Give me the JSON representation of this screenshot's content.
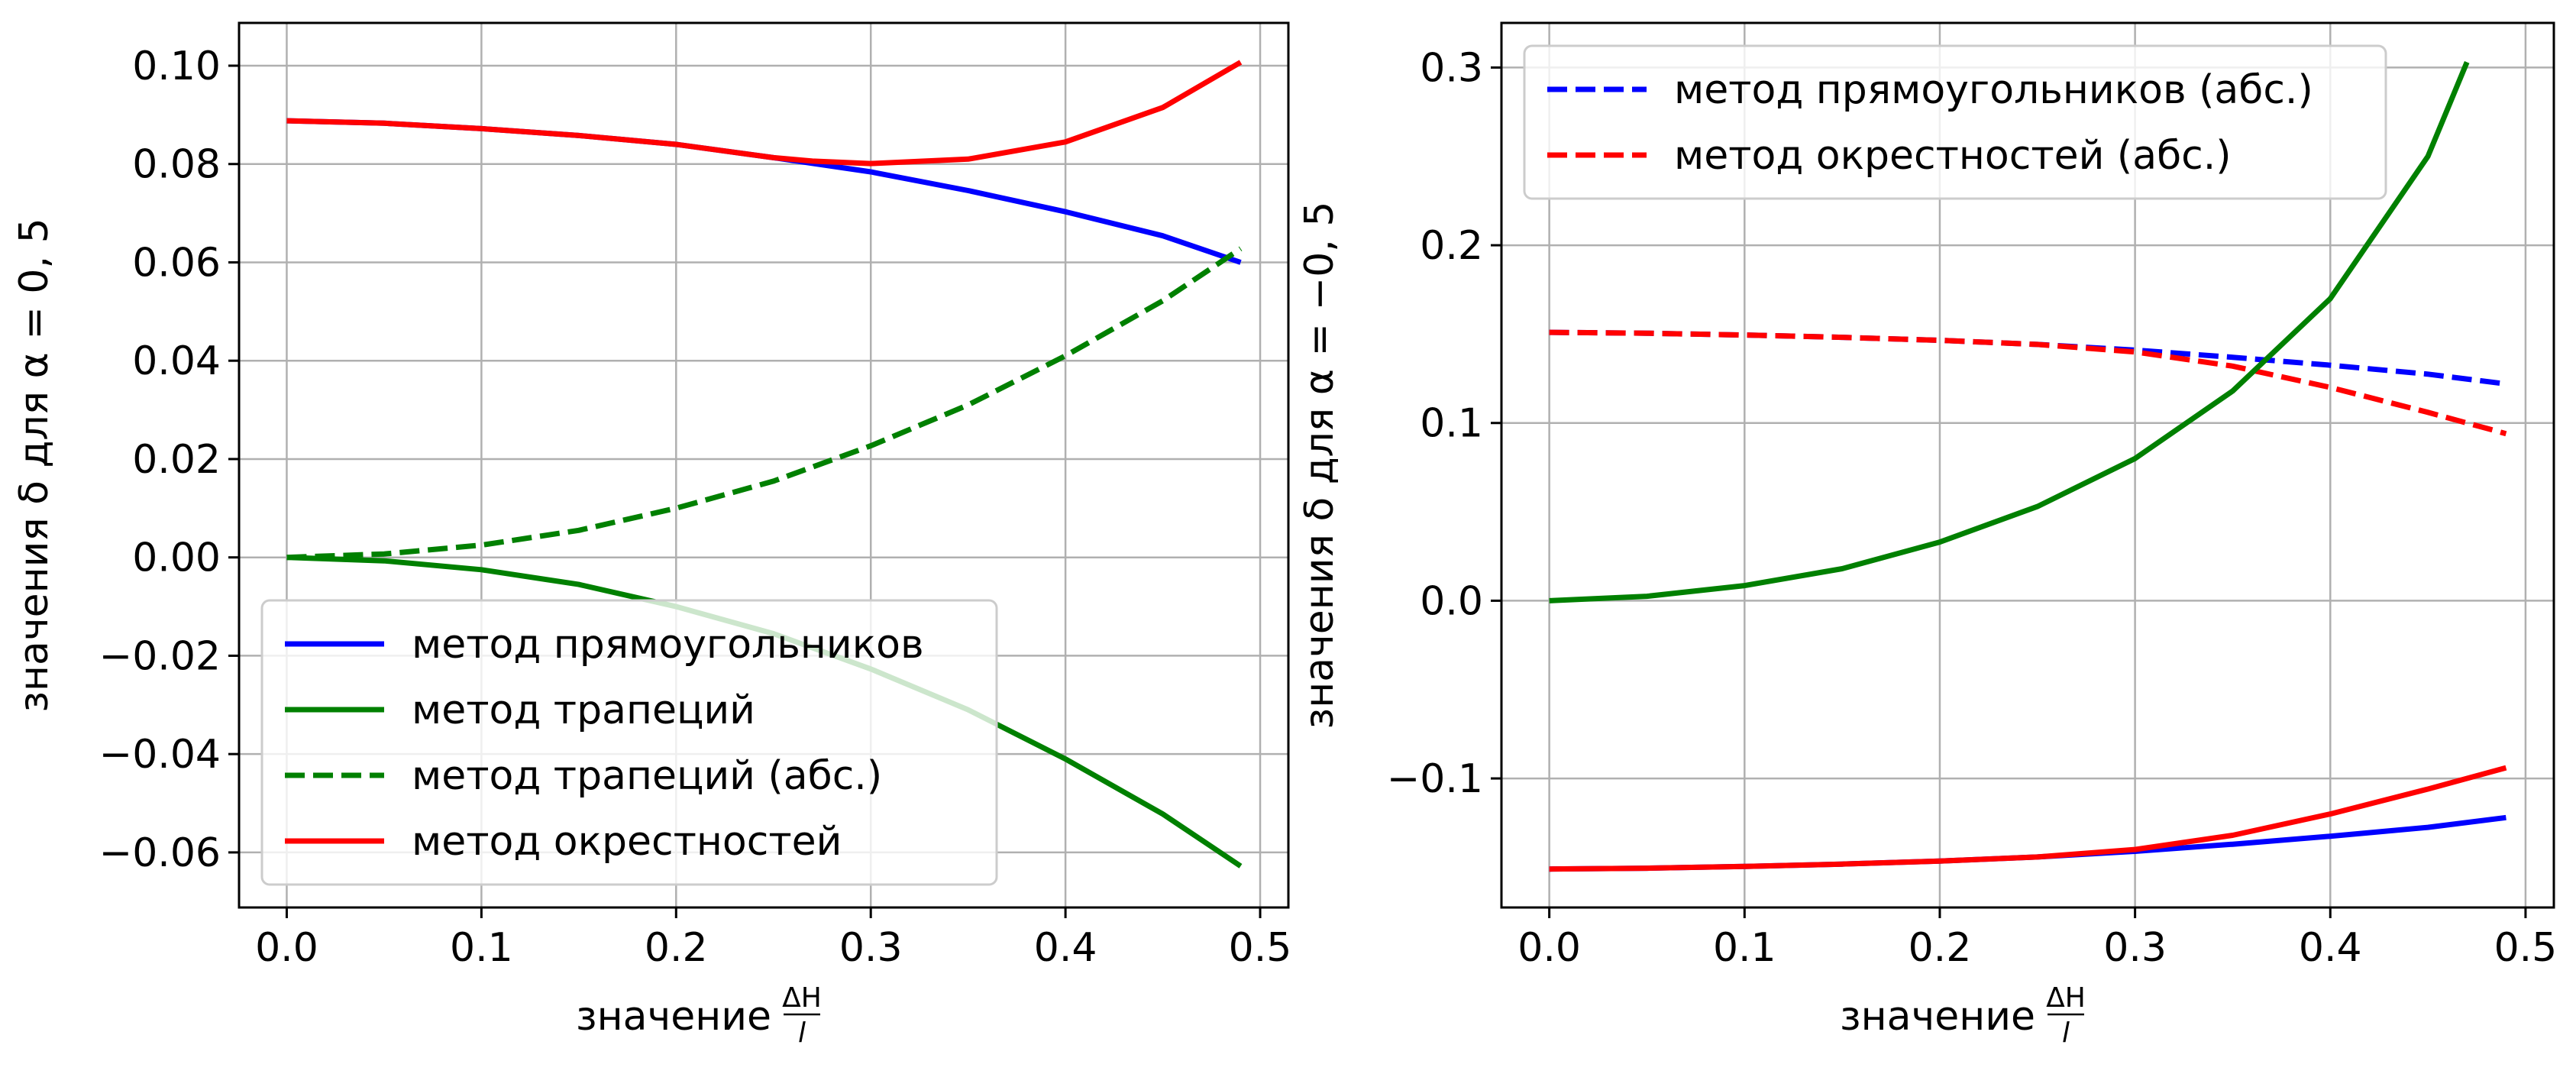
{
  "chart_data": [
    {
      "type": "line",
      "xlabel_prefix": "значение",
      "xlabel_frac_num": "ΔH",
      "xlabel_frac_den": "l",
      "ylabel": "значения δ для α = 0, 5",
      "xlim": [
        -0.0245,
        0.5145
      ],
      "ylim": [
        -0.0712,
        0.1087
      ],
      "x_ticks": [
        "0.0",
        "0.1",
        "0.2",
        "0.3",
        "0.4",
        "0.5"
      ],
      "x_tick_values": [
        0.0,
        0.1,
        0.2,
        0.3,
        0.4,
        0.5
      ],
      "y_ticks": [
        "0.10",
        "0.08",
        "0.06",
        "0.04",
        "0.02",
        "0.00",
        "−0.02",
        "−0.04",
        "−0.06"
      ],
      "y_tick_values": [
        0.1,
        0.08,
        0.06,
        0.04,
        0.02,
        0.0,
        -0.02,
        -0.04,
        -0.06
      ],
      "grid": true,
      "legend_position": "lower-left",
      "legend": [
        "метод прямоугольников",
        "метод трапеций",
        "метод трапеций (абс.)",
        "метод окрестностей"
      ],
      "series": [
        {
          "name": "метод прямоугольников",
          "color": "#0000ff",
          "dash": "solid",
          "x": [
            0.0,
            0.05,
            0.1,
            0.15,
            0.2,
            0.25,
            0.3,
            0.35,
            0.4,
            0.45,
            0.49
          ],
          "values": [
            0.0888,
            0.0883,
            0.0872,
            0.0858,
            0.084,
            0.0813,
            0.0784,
            0.0746,
            0.0703,
            0.0654,
            0.06
          ]
        },
        {
          "name": "метод трапеций",
          "color": "#008000",
          "dash": "solid",
          "x": [
            0.0,
            0.05,
            0.1,
            0.15,
            0.2,
            0.25,
            0.3,
            0.35,
            0.4,
            0.45,
            0.49
          ],
          "values": [
            0.0,
            -0.0007,
            -0.0025,
            -0.0055,
            -0.01,
            -0.0155,
            -0.0227,
            -0.031,
            -0.041,
            -0.0522,
            -0.0628
          ]
        },
        {
          "name": "метод трапеций (абс.)",
          "color": "#008000",
          "dash": "dashed",
          "x": [
            0.0,
            0.05,
            0.1,
            0.15,
            0.2,
            0.25,
            0.3,
            0.35,
            0.4,
            0.45,
            0.49
          ],
          "values": [
            0.0,
            0.0007,
            0.0025,
            0.0055,
            0.01,
            0.0155,
            0.0227,
            0.031,
            0.041,
            0.0522,
            0.0628
          ]
        },
        {
          "name": "метод окрестностей",
          "color": "#ff0000",
          "dash": "solid",
          "x": [
            0.0,
            0.05,
            0.1,
            0.15,
            0.2,
            0.25,
            0.27,
            0.3,
            0.35,
            0.4,
            0.45,
            0.49
          ],
          "values": [
            0.0888,
            0.0883,
            0.0872,
            0.0858,
            0.084,
            0.0813,
            0.0806,
            0.0801,
            0.081,
            0.0845,
            0.0915,
            0.1007
          ]
        }
      ]
    },
    {
      "type": "line",
      "xlabel_prefix": "значение",
      "xlabel_frac_num": "ΔH",
      "xlabel_frac_den": "l",
      "ylabel": "значения δ для α = −0, 5",
      "xlim": [
        -0.0245,
        0.5145
      ],
      "ylim": [
        -0.1726,
        0.3251
      ],
      "x_ticks": [
        "0.0",
        "0.1",
        "0.2",
        "0.3",
        "0.4",
        "0.5"
      ],
      "x_tick_values": [
        0.0,
        0.1,
        0.2,
        0.3,
        0.4,
        0.5
      ],
      "y_ticks": [
        "0.3",
        "0.2",
        "0.1",
        "0.0",
        "−0.1"
      ],
      "y_tick_values": [
        0.3,
        0.2,
        0.1,
        0.0,
        -0.1
      ],
      "grid": true,
      "legend_position": "upper-left",
      "legend": [
        "метод прямоугольников (абс.)",
        "метод окрестностей (абс.)"
      ],
      "series": [
        {
          "color": "#0000ff",
          "dash": "dashed",
          "x": [
            0.0,
            0.05,
            0.1,
            0.15,
            0.2,
            0.25,
            0.3,
            0.35,
            0.4,
            0.45,
            0.49
          ],
          "values": [
            0.151,
            0.1505,
            0.1495,
            0.1482,
            0.1465,
            0.1442,
            0.141,
            0.137,
            0.1325,
            0.1275,
            0.122
          ]
        },
        {
          "color": "#ff0000",
          "dash": "dashed",
          "x": [
            0.0,
            0.05,
            0.1,
            0.15,
            0.2,
            0.25,
            0.3,
            0.35,
            0.4,
            0.45,
            0.49
          ],
          "values": [
            0.151,
            0.1505,
            0.1495,
            0.1482,
            0.1465,
            0.1442,
            0.14,
            0.132,
            0.12,
            0.106,
            0.094
          ]
        },
        {
          "color": "#008000",
          "dash": "solid",
          "x": [
            0.0,
            0.05,
            0.1,
            0.15,
            0.2,
            0.25,
            0.3,
            0.35,
            0.4,
            0.45,
            0.47
          ],
          "values": [
            0.0,
            0.0025,
            0.0085,
            0.018,
            0.033,
            0.053,
            0.08,
            0.118,
            0.17,
            0.25,
            0.303
          ]
        },
        {
          "color": "#0000ff",
          "dash": "solid",
          "x": [
            0.0,
            0.05,
            0.1,
            0.15,
            0.2,
            0.25,
            0.3,
            0.35,
            0.4,
            0.45,
            0.49
          ],
          "values": [
            -0.151,
            -0.1505,
            -0.1495,
            -0.1482,
            -0.1465,
            -0.1442,
            -0.141,
            -0.137,
            -0.1325,
            -0.1275,
            -0.122
          ]
        },
        {
          "color": "#ff0000",
          "dash": "solid",
          "x": [
            0.0,
            0.05,
            0.1,
            0.15,
            0.2,
            0.25,
            0.3,
            0.35,
            0.4,
            0.45,
            0.49
          ],
          "values": [
            -0.151,
            -0.1505,
            -0.1495,
            -0.1482,
            -0.1465,
            -0.1442,
            -0.14,
            -0.132,
            -0.12,
            -0.106,
            -0.094
          ]
        }
      ]
    }
  ]
}
